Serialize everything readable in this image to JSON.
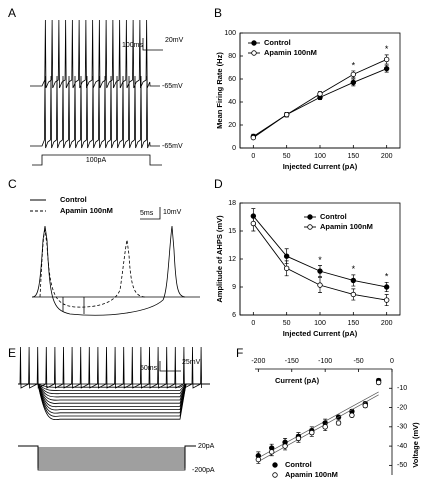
{
  "panel_labels": [
    "A",
    "B",
    "C",
    "D",
    "E",
    "F"
  ],
  "annotations": {
    "a": {
      "scale_mv": "20mV",
      "scale_ms": "100ms",
      "rest_top": "-65mV",
      "rest_bottom": "-65mV",
      "stim": "100pA"
    },
    "c": {
      "legend_control": "Control",
      "legend_apamin": "Apamin 100nM",
      "scale_ms": "5ms",
      "scale_mv": "10mV"
    },
    "e": {
      "scale_mv": "25mV",
      "scale_ms": "50ms",
      "stim_top": "20pA",
      "stim_bottom": "-200pA"
    }
  },
  "chart_data": [
    {
      "type": "errorline",
      "x_label": "Injected Current (pA)",
      "y_label": "Mean Firing Rate (Hz)",
      "x": [
        0,
        50,
        100,
        150,
        200
      ],
      "xlim": [
        -20,
        220
      ],
      "xticks": [
        0,
        50,
        100,
        150,
        200
      ],
      "ylim": [
        0,
        100
      ],
      "yticks": [
        0,
        20,
        40,
        60,
        80,
        100
      ],
      "legend": "upper left",
      "x_axis_position": "bottom",
      "y_axis_position": "left",
      "series": [
        {
          "name": "Control",
          "color": "#000000",
          "fill": "#000000",
          "line": true,
          "values": [
            10,
            29,
            44,
            57,
            69
          ],
          "errors": [
            2,
            2,
            2,
            3,
            3
          ]
        },
        {
          "name": "Apamin 100nM",
          "color": "#000000",
          "fill": "#ffffff",
          "line": true,
          "values": [
            9,
            29,
            47,
            64,
            77
          ],
          "errors": [
            1,
            2,
            2,
            3,
            4
          ]
        }
      ],
      "annotations": [
        {
          "x": 150,
          "label": "*"
        },
        {
          "x": 200,
          "label": "*"
        }
      ]
    },
    {
      "type": "errorline",
      "x_label": "Injected Current (pA)",
      "y_label": "Amplitude of AHPS (mV)",
      "x": [
        0,
        50,
        100,
        150,
        200
      ],
      "xlim": [
        -20,
        220
      ],
      "xticks": [
        0,
        50,
        100,
        150,
        200
      ],
      "ylim": [
        6,
        18
      ],
      "yticks": [
        6,
        9,
        12,
        15,
        18
      ],
      "legend": "upper right",
      "x_axis_position": "bottom",
      "y_axis_position": "left",
      "series": [
        {
          "name": "Control",
          "color": "#000000",
          "fill": "#000000",
          "line": true,
          "values": [
            16.6,
            12.3,
            10.7,
            9.7,
            9.0
          ],
          "errors": [
            0.8,
            0.8,
            0.6,
            0.6,
            0.5
          ]
        },
        {
          "name": "Apamin 100nM",
          "color": "#000000",
          "fill": "#ffffff",
          "line": true,
          "values": [
            15.8,
            11.0,
            9.2,
            8.2,
            7.6
          ],
          "errors": [
            0.8,
            0.8,
            0.8,
            0.6,
            0.6
          ]
        }
      ],
      "annotations": [
        {
          "x": 100,
          "label": "*"
        },
        {
          "x": 150,
          "label": "*"
        },
        {
          "x": 200,
          "label": "*"
        }
      ]
    },
    {
      "type": "errorline",
      "x_label": "Current (pA)",
      "y_label": "Voltage (mV)",
      "x": [
        -200,
        -180,
        -160,
        -140,
        -120,
        -100,
        -80,
        -60,
        -40,
        -20
      ],
      "xlim": [
        -205,
        0
      ],
      "xticks": [
        -200,
        -150,
        -100,
        -50,
        0
      ],
      "ylim": [
        -55,
        0
      ],
      "yticks": [
        -10,
        -20,
        -30,
        -40,
        -50
      ],
      "legend": "lower left",
      "x_axis_position": "top",
      "y_axis_position": "right",
      "series": [
        {
          "name": "Control",
          "color": "#000000",
          "fill": "#000000",
          "line": false,
          "values": [
            -45,
            -41,
            -38,
            -35,
            -32,
            -28,
            -25,
            -22,
            -18,
            -6
          ],
          "errors": [
            2,
            2,
            2,
            2,
            2,
            2,
            1,
            1,
            1,
            1
          ]
        },
        {
          "name": "Apamin 100nM",
          "color": "#000000",
          "fill": "#ffffff",
          "line": false,
          "values": [
            -47,
            -43,
            -40,
            -36,
            -33,
            -30,
            -28,
            -24,
            -19,
            -7
          ],
          "errors": [
            2,
            2,
            2,
            2,
            2,
            2,
            1,
            1,
            1,
            1
          ]
        }
      ],
      "annotations": []
    }
  ]
}
